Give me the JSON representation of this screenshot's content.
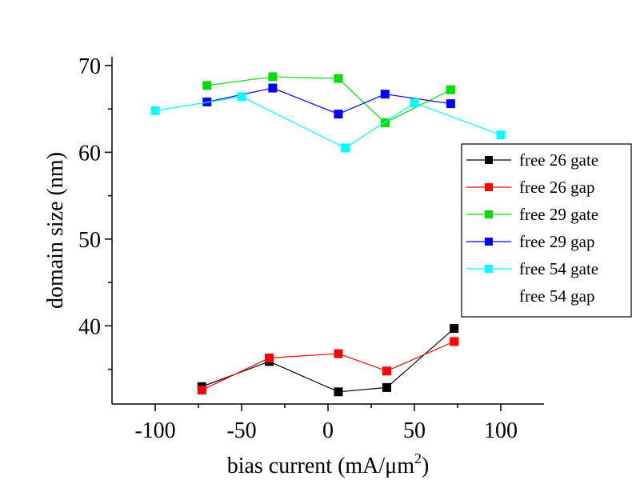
{
  "chart_data": {
    "type": "line",
    "title": "",
    "xlabel": "bias current (mA/μm",
    "xlabel_sup": "2",
    "xlabel_close": ")",
    "ylabel": "domain size (nm)",
    "xlim": [
      -125,
      125
    ],
    "ylim": [
      31,
      71
    ],
    "xticks": [
      -100,
      -50,
      0,
      50,
      100
    ],
    "xtick_labels": [
      "-100",
      "-50",
      "0",
      "50",
      "100"
    ],
    "yticks": [
      40,
      50,
      60,
      70
    ],
    "ytick_labels": [
      "40",
      "50",
      "60",
      "70"
    ],
    "grid": false,
    "legend_placement": "right",
    "series": [
      {
        "name": "free 26 gate",
        "color": "#000000",
        "marker": "square",
        "x": [
          -73,
          -34,
          6,
          34,
          73
        ],
        "y": [
          33.0,
          35.9,
          32.4,
          32.9,
          39.7
        ]
      },
      {
        "name": "free 26 gap",
        "color": "#ff0000",
        "marker": "square",
        "x": [
          -73,
          -34,
          6,
          34,
          73
        ],
        "y": [
          32.6,
          36.3,
          36.8,
          34.8,
          38.2
        ]
      },
      {
        "name": "free 29 gate",
        "color": "#00dd00",
        "marker": "square",
        "x": [
          -70,
          -32,
          6,
          33,
          71
        ],
        "y": [
          67.7,
          68.7,
          68.5,
          63.4,
          67.2
        ]
      },
      {
        "name": "free 29 gap",
        "color": "#0000ff",
        "marker": "square",
        "x": [
          -70,
          -32,
          6,
          33,
          71
        ],
        "y": [
          65.8,
          67.4,
          64.4,
          66.7,
          65.6
        ]
      },
      {
        "name": "free 54 gate",
        "color": "#00ffff",
        "marker": "square",
        "x": [
          -100,
          -50,
          10,
          50,
          100
        ],
        "y": [
          64.8,
          66.4,
          60.5,
          65.7,
          62.0
        ]
      },
      {
        "name": "free 54 gap",
        "color": "",
        "marker": "none",
        "x": [],
        "y": []
      }
    ]
  }
}
